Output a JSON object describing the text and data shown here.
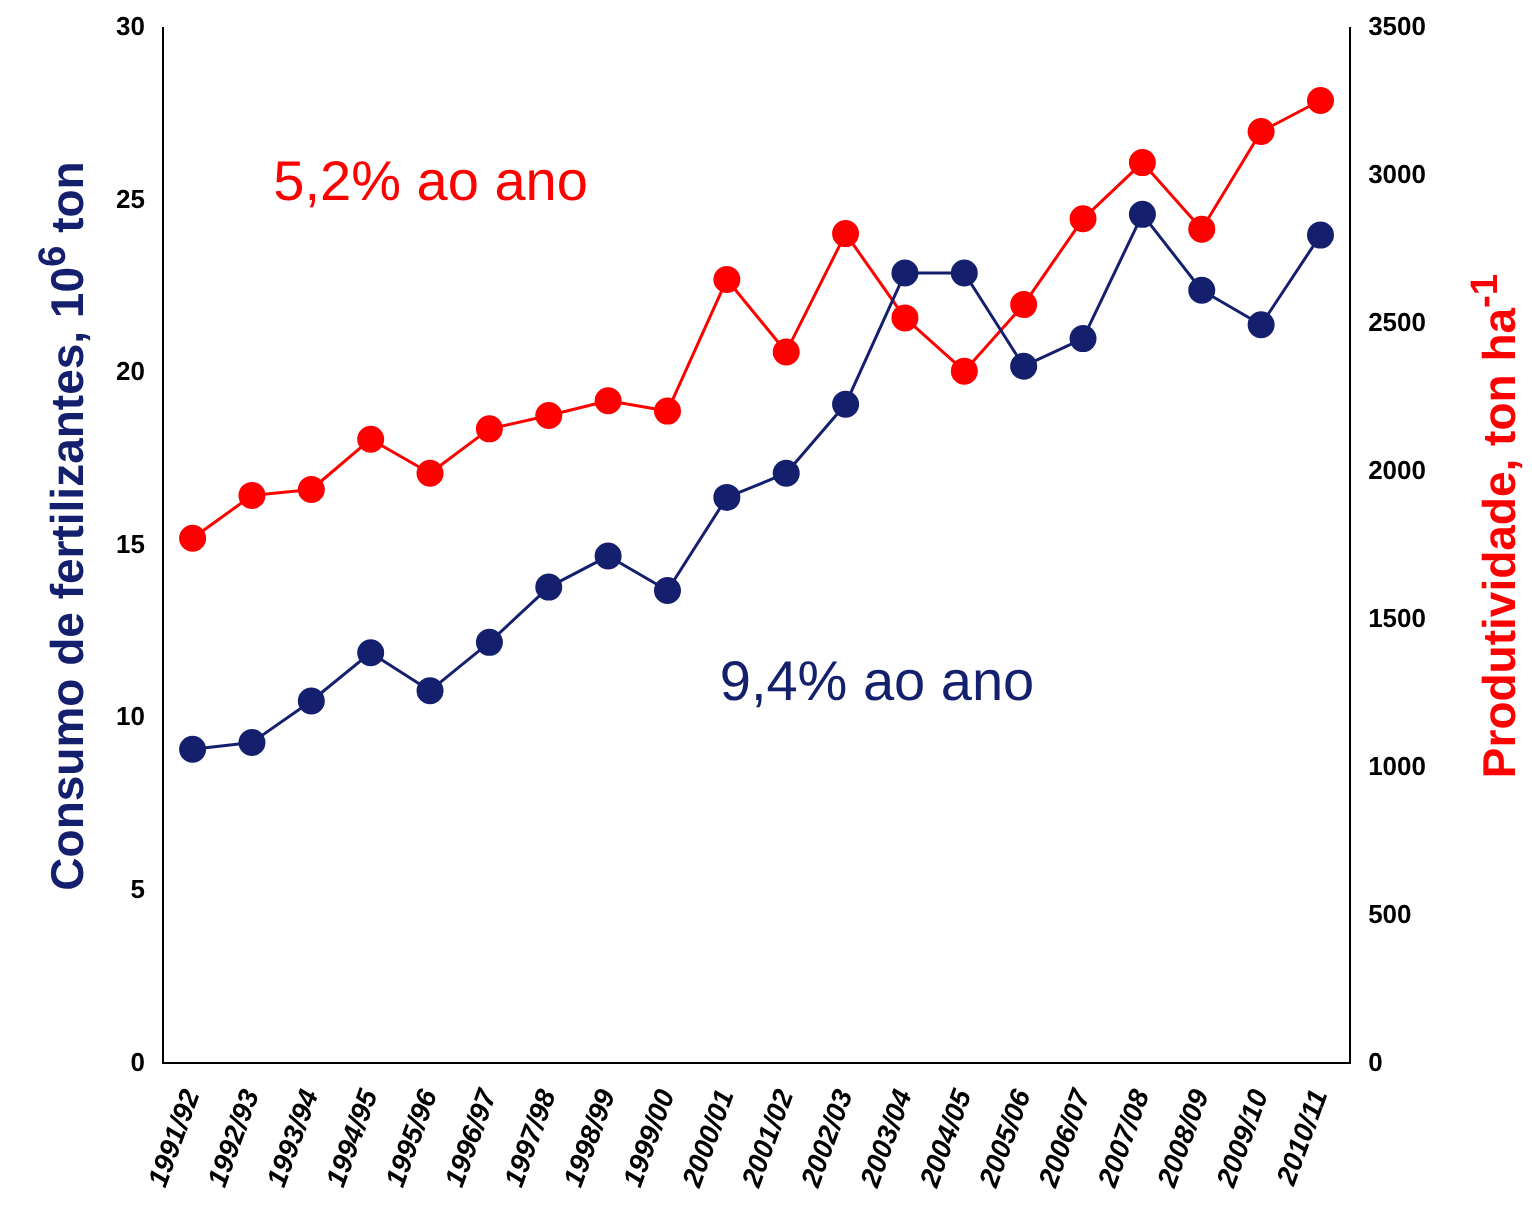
{
  "chart_data": {
    "type": "line",
    "ylabel": "Consumo de fertilizantes, 10$^{6}$ ton",
    "y2label": "Produtividade, ton ha$^{-1}$",
    "categories": [
      "1991/92",
      "1992/93",
      "1993/94",
      "1994/95",
      "1995/96",
      "1996/97",
      "1997/98",
      "1998/99",
      "1999/00",
      "2000/01",
      "2001/02",
      "2002/03",
      "2003/04",
      "2004/05",
      "2005/06",
      "2006/07",
      "2007/08",
      "2008/09",
      "2009/10",
      "2010/11"
    ],
    "series": [
      {
        "color": "#14206e",
        "values": [
          9.1,
          9.3,
          10.5,
          11.9,
          10.8,
          12.2,
          13.8,
          14.7,
          13.7,
          16.4,
          17.1,
          19.1,
          22.9,
          22.9,
          20.2,
          21.0,
          24.6,
          22.4,
          21.4,
          24.0
        ]
      },
      {
        "color": "#ff0000",
        "axis": "y2",
        "values": [
          1775,
          1920,
          1940,
          2110,
          1995,
          2145,
          2190,
          2240,
          2205,
          2650,
          2405,
          2805,
          2520,
          2340,
          2565,
          2855,
          3045,
          2820,
          3150,
          3255
        ]
      }
    ],
    "annotations": [
      "9,4% ao ano",
      "5,2% ao ano"
    ],
    "ylim": [
      0,
      30
    ],
    "yticks": [
      0,
      5,
      10,
      15,
      20,
      25,
      30
    ],
    "y2lim": [
      0,
      3500
    ],
    "y2ticks": [
      0,
      500,
      1000,
      1500,
      2000,
      2500,
      3000,
      3500
    ],
    "grid": false,
    "legend": false,
    "marker": "circle",
    "line_style": "solid"
  }
}
